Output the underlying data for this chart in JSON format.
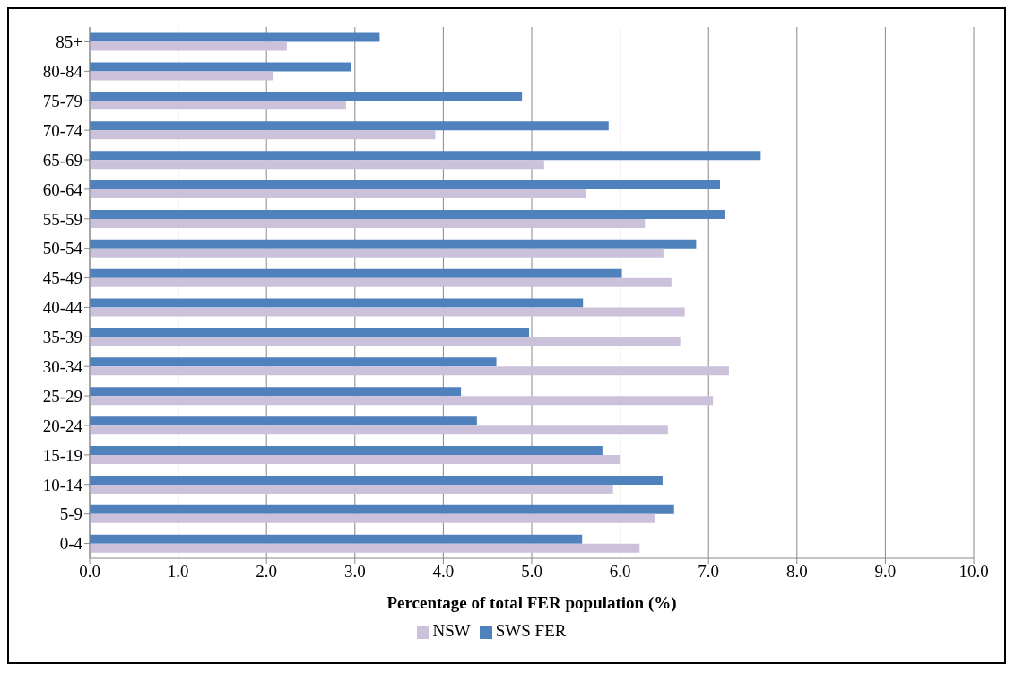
{
  "chart_data": {
    "type": "bar",
    "orientation": "horizontal",
    "xlabel": "Percentage of total FER population (%)",
    "categories": [
      "85+",
      "80-84",
      "75-79",
      "70-74",
      "65-69",
      "60-64",
      "55-59",
      "50-54",
      "45-49",
      "40-44",
      "35-39",
      "30-34",
      "25-29",
      "20-24",
      "15-19",
      "10-14",
      "5-9",
      "0-4"
    ],
    "series": [
      {
        "name": "SWS FER",
        "color": "#4f81bd",
        "values": [
          3.28,
          2.96,
          4.89,
          5.87,
          7.59,
          7.13,
          7.19,
          6.86,
          6.02,
          5.58,
          4.97,
          4.6,
          4.2,
          4.38,
          5.8,
          6.48,
          6.61,
          5.57
        ]
      },
      {
        "name": "NSW",
        "color": "#ccc1da",
        "values": [
          2.23,
          2.08,
          2.9,
          3.91,
          5.14,
          5.61,
          6.28,
          6.49,
          6.58,
          6.73,
          6.68,
          7.23,
          7.05,
          6.54,
          6.0,
          5.92,
          6.39,
          6.22
        ]
      }
    ],
    "xlim": [
      0,
      10
    ],
    "xticks": [
      {
        "value": 0,
        "label": "0.0"
      },
      {
        "value": 1,
        "label": "1.0"
      },
      {
        "value": 2,
        "label": "2.0"
      },
      {
        "value": 3,
        "label": "3.0"
      },
      {
        "value": 4,
        "label": "4.0"
      },
      {
        "value": 5,
        "label": "5.0"
      },
      {
        "value": 6,
        "label": "6.0"
      },
      {
        "value": 7,
        "label": "7.0"
      },
      {
        "value": 8,
        "label": "8.0"
      },
      {
        "value": 9,
        "label": "9.0"
      },
      {
        "value": 10,
        "label": "10.0"
      }
    ],
    "grid": "x",
    "legend": "bottom"
  }
}
